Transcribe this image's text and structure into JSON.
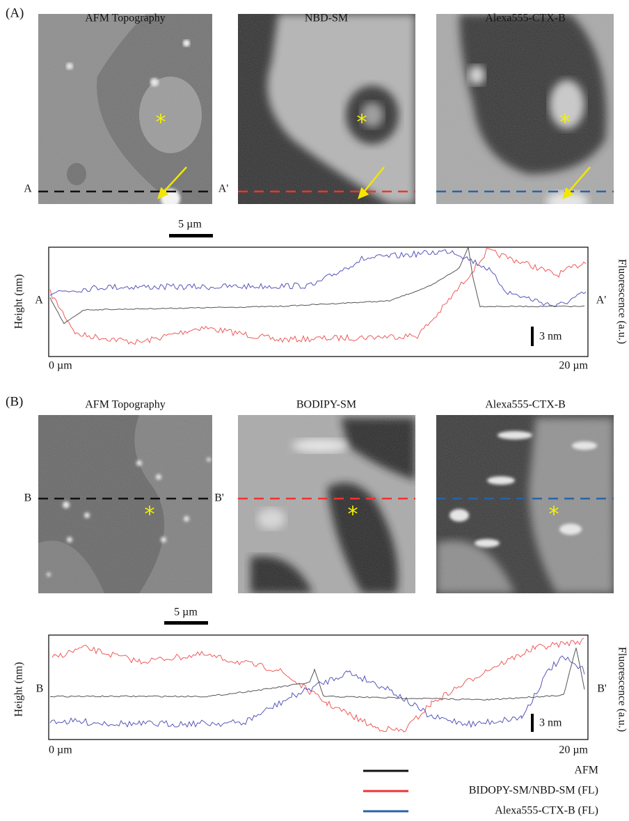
{
  "marker": "*",
  "panels": [
    {
      "label": "(A)",
      "images": [
        {
          "title": "AFM Topography"
        },
        {
          "title": "NBD-SM"
        },
        {
          "title": "Alexa555-CTX-B"
        }
      ],
      "line_start": "A",
      "line_end": "A'",
      "scale_bar": "5 µm",
      "profile": {
        "y_label_left": "Height (nm)",
        "y_label_right": "Fluorescence (a.u.)",
        "scale_bar": "3 nm",
        "x_start": "0 µm",
        "x_end": "20 µm"
      }
    },
    {
      "label": "(B)",
      "images": [
        {
          "title": "AFM Topography"
        },
        {
          "title": "BODIPY-SM"
        },
        {
          "title": "Alexa555-CTX-B"
        }
      ],
      "line_start": "B",
      "line_end": "B'",
      "scale_bar": "5 µm",
      "profile": {
        "y_label_left": "Height (nm)",
        "y_label_right": "Fluorescence (a.u.)",
        "scale_bar": "3 nm",
        "x_start": "0 µm",
        "x_end": "20 µm"
      }
    }
  ],
  "legend": [
    "AFM",
    "BIDOPY-SM/NBD-SM (FL)",
    "Alexa555-CTX-B (FL)"
  ]
}
